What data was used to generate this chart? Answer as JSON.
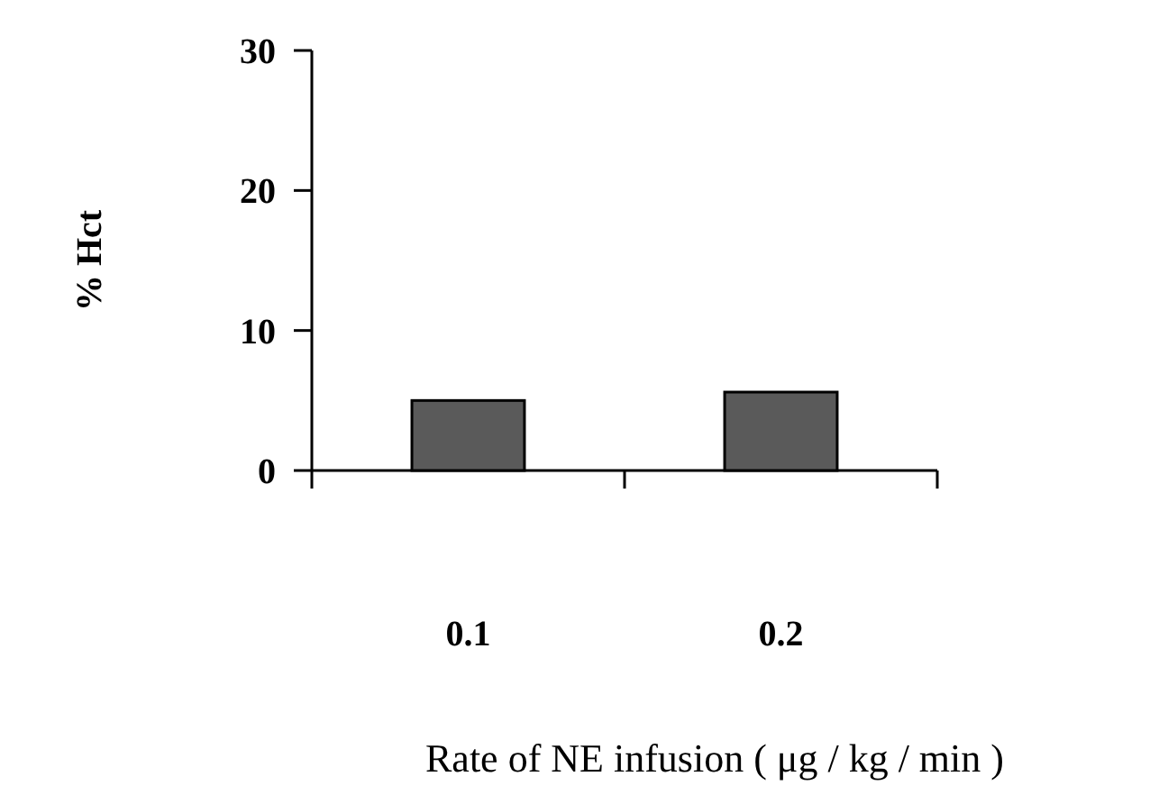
{
  "chart_data": {
    "type": "bar",
    "xlabel": "Rate of NE infusion ( μg / kg / min )",
    "ylabel": "% Hct",
    "categories": [
      "0.1",
      "0.2"
    ],
    "values": [
      5,
      5.6
    ],
    "color": "#5a5a5a",
    "ylim": [
      0,
      30
    ],
    "yticks": [
      0,
      10,
      20,
      30
    ]
  }
}
